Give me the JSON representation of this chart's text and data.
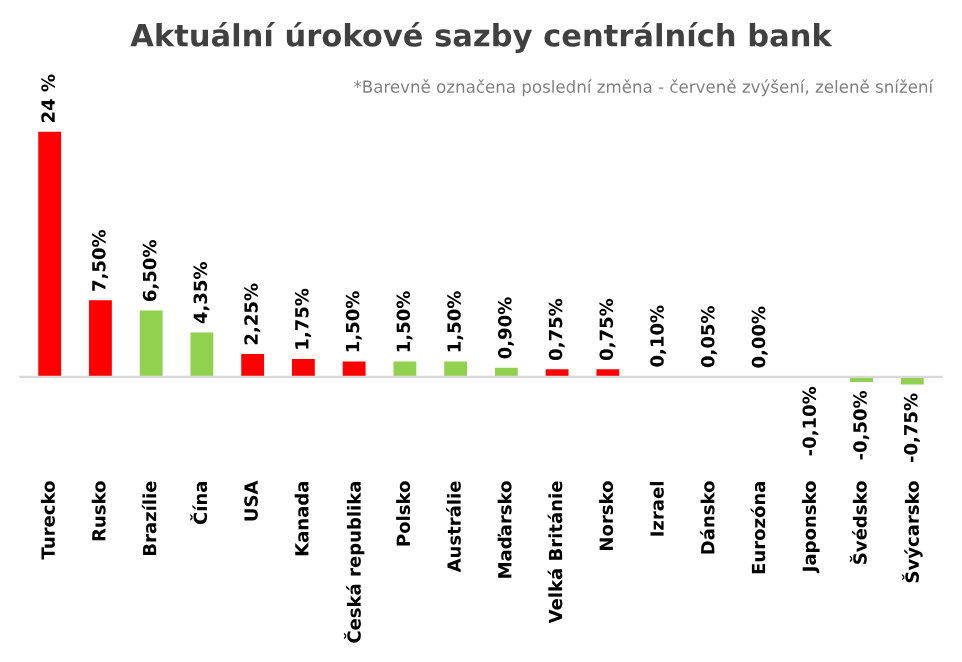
{
  "chart_data": {
    "type": "bar",
    "title": "Aktuální úrokové sazby centrálních bank",
    "annotations": [
      "*Barevně označena poslední změna - červeně zvýšení, zeleně snížení"
    ],
    "categories": [
      "Turecko",
      "Rusko",
      "Brazílie",
      "Čína",
      "USA",
      "Kanada",
      "Česká republika",
      "Polsko",
      "Austrálie",
      "Maďarsko",
      "Velká Británie",
      "Norsko",
      "Izrael",
      "Dánsko",
      "Eurozóna",
      "Japonsko",
      "Švédsko",
      "Švýcarsko"
    ],
    "values": [
      24,
      7.5,
      6.5,
      4.35,
      2.25,
      1.75,
      1.5,
      1.5,
      1.5,
      0.9,
      0.75,
      0.75,
      0.1,
      0.05,
      0,
      -0.1,
      -0.5,
      -0.75
    ],
    "colors": [
      "#ff0000",
      "#ff0000",
      "#92d050",
      "#92d050",
      "#ff0000",
      "#ff0000",
      "#ff0000",
      "#92d050",
      "#92d050",
      "#92d050",
      "#ff0000",
      "#ff0000",
      "#d9d9d9",
      "#d9d9d9",
      "#d9d9d9",
      "#92d050",
      "#92d050",
      "#92d050"
    ],
    "value_labels": [
      "24 %",
      "7,50%",
      "6,50%",
      "4,35%",
      "2,25%",
      "1,75%",
      "1,50%",
      "1,50%",
      "1,50%",
      "0,90%",
      "0,75%",
      "0,75%",
      "0,10%",
      "0,05%",
      "0,00%",
      "-0,10%",
      "-0,50%",
      "-0,75%"
    ],
    "grid": false,
    "legend": false
  }
}
